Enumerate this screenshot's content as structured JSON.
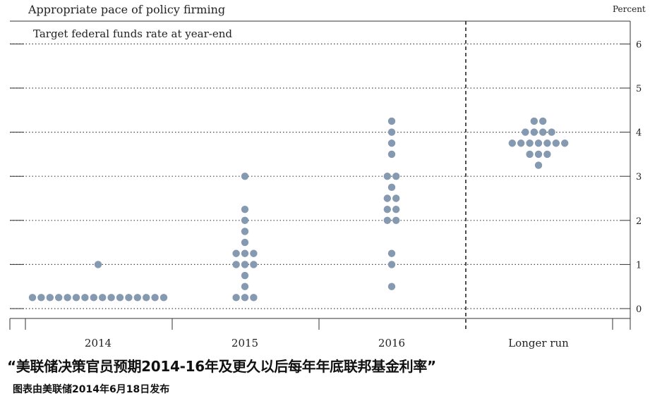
{
  "chart_data": {
    "type": "scatter",
    "title": "Appropriate pace of policy firming",
    "subtitle": "Target federal funds rate at year-end",
    "ylabel": "Percent",
    "ylim": [
      0,
      6.5
    ],
    "yticks": [
      "0",
      "1",
      "2",
      "3",
      "4",
      "5",
      "6"
    ],
    "categories": [
      "2014",
      "2015",
      "2016",
      "Longer run"
    ],
    "grid": true,
    "projections": [
      {
        "category": "2014",
        "rates": [
          {
            "value": 0.25,
            "count": 16
          },
          {
            "value": 1.0,
            "count": 1
          }
        ]
      },
      {
        "category": "2015",
        "rates": [
          {
            "value": 0.25,
            "count": 3
          },
          {
            "value": 0.5,
            "count": 1
          },
          {
            "value": 0.75,
            "count": 1
          },
          {
            "value": 1.0,
            "count": 3
          },
          {
            "value": 1.25,
            "count": 3
          },
          {
            "value": 1.5,
            "count": 1
          },
          {
            "value": 1.75,
            "count": 1
          },
          {
            "value": 2.0,
            "count": 1
          },
          {
            "value": 2.25,
            "count": 1
          },
          {
            "value": 3.0,
            "count": 1
          }
        ]
      },
      {
        "category": "2016",
        "rates": [
          {
            "value": 0.5,
            "count": 1
          },
          {
            "value": 1.0,
            "count": 1
          },
          {
            "value": 1.25,
            "count": 1
          },
          {
            "value": 2.0,
            "count": 2
          },
          {
            "value": 2.25,
            "count": 2
          },
          {
            "value": 2.5,
            "count": 2
          },
          {
            "value": 2.75,
            "count": 1
          },
          {
            "value": 3.0,
            "count": 2
          },
          {
            "value": 3.5,
            "count": 1
          },
          {
            "value": 3.75,
            "count": 1
          },
          {
            "value": 4.0,
            "count": 1
          },
          {
            "value": 4.25,
            "count": 1
          }
        ]
      },
      {
        "category": "Longer run",
        "rates": [
          {
            "value": 3.25,
            "count": 1
          },
          {
            "value": 3.5,
            "count": 3
          },
          {
            "value": 3.75,
            "count": 7
          },
          {
            "value": 4.0,
            "count": 4
          },
          {
            "value": 4.25,
            "count": 2
          }
        ]
      }
    ]
  },
  "caption": "“美联储决策官员预期2014-16年及更久以后每年年底联邦基金利率”",
  "subcaption": "图表由美联储2014年6月18日发布",
  "colors": {
    "dot": "#8599b0",
    "axis": "#333333",
    "grid": "#444444"
  }
}
